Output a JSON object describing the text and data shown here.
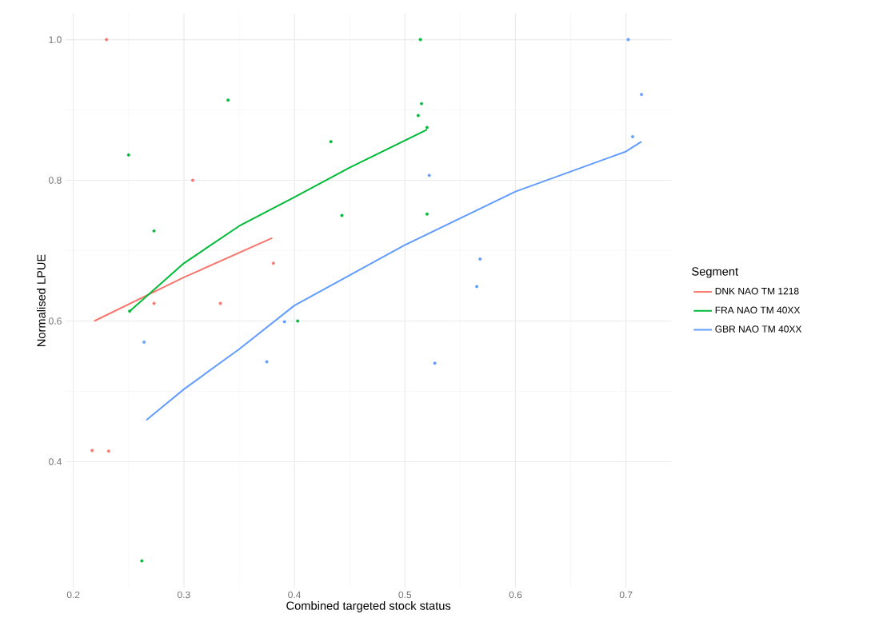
{
  "chart_data": {
    "type": "scatter",
    "xlabel": "Combined targeted stock status",
    "ylabel": "Normalised LPUE",
    "legend_title": "Segment",
    "xlim": [
      0.193,
      0.741
    ],
    "ylim": [
      0.221,
      1.037
    ],
    "xticks": [
      0.2,
      0.3,
      0.4,
      0.5,
      0.6,
      0.7
    ],
    "yticks": [
      0.4,
      0.6,
      0.8,
      {
        "value": 1.0,
        "label": "1.0"
      }
    ],
    "grid": true,
    "legend": "right",
    "series": [
      {
        "marker": "circle",
        "color": "#f8766d",
        "x": [
          0.23,
          0.308,
          0.381,
          0.333,
          0.273,
          0.217,
          0.232
        ],
        "values": [
          1.0,
          0.8,
          0.682,
          0.625,
          0.625,
          0.416,
          0.415
        ]
      },
      {
        "marker": "circle",
        "color": "#00ba38",
        "x": [
          0.25,
          0.34,
          0.273,
          0.251,
          0.262,
          0.403,
          0.433,
          0.443,
          0.514,
          0.515,
          0.512,
          0.52,
          0.52
        ],
        "values": [
          0.836,
          0.914,
          0.728,
          0.614,
          0.259,
          0.6,
          0.855,
          0.75,
          1.0,
          0.909,
          0.892,
          0.875,
          0.752
        ]
      },
      {
        "marker": "circle",
        "color": "#619cff",
        "x": [
          0.702,
          0.714,
          0.706,
          0.522,
          0.568,
          0.565,
          0.527,
          0.264,
          0.375,
          0.391
        ],
        "values": [
          1.0,
          0.922,
          0.862,
          0.807,
          0.688,
          0.649,
          0.54,
          0.57,
          0.542,
          0.599
        ]
      },
      {
        "type": "line",
        "marker": "none",
        "name": "DNK NAO TM 1218",
        "color": "#f8766d",
        "x": [
          0.219,
          0.3,
          0.38
        ],
        "values": [
          0.6,
          0.662,
          0.718
        ]
      },
      {
        "type": "line",
        "marker": "none",
        "name": "FRA NAO TM 40XX",
        "color": "#00ba38",
        "x": [
          0.251,
          0.3,
          0.35,
          0.4,
          0.45,
          0.52
        ],
        "values": [
          0.614,
          0.682,
          0.735,
          0.776,
          0.818,
          0.872
        ]
      },
      {
        "type": "line",
        "marker": "none",
        "name": "GBR NAO TM 40XX",
        "color": "#619cff",
        "x": [
          0.266,
          0.3,
          0.35,
          0.4,
          0.5,
          0.6,
          0.7,
          0.714
        ],
        "values": [
          0.459,
          0.503,
          0.56,
          0.622,
          0.708,
          0.784,
          0.841,
          0.855
        ]
      }
    ]
  }
}
